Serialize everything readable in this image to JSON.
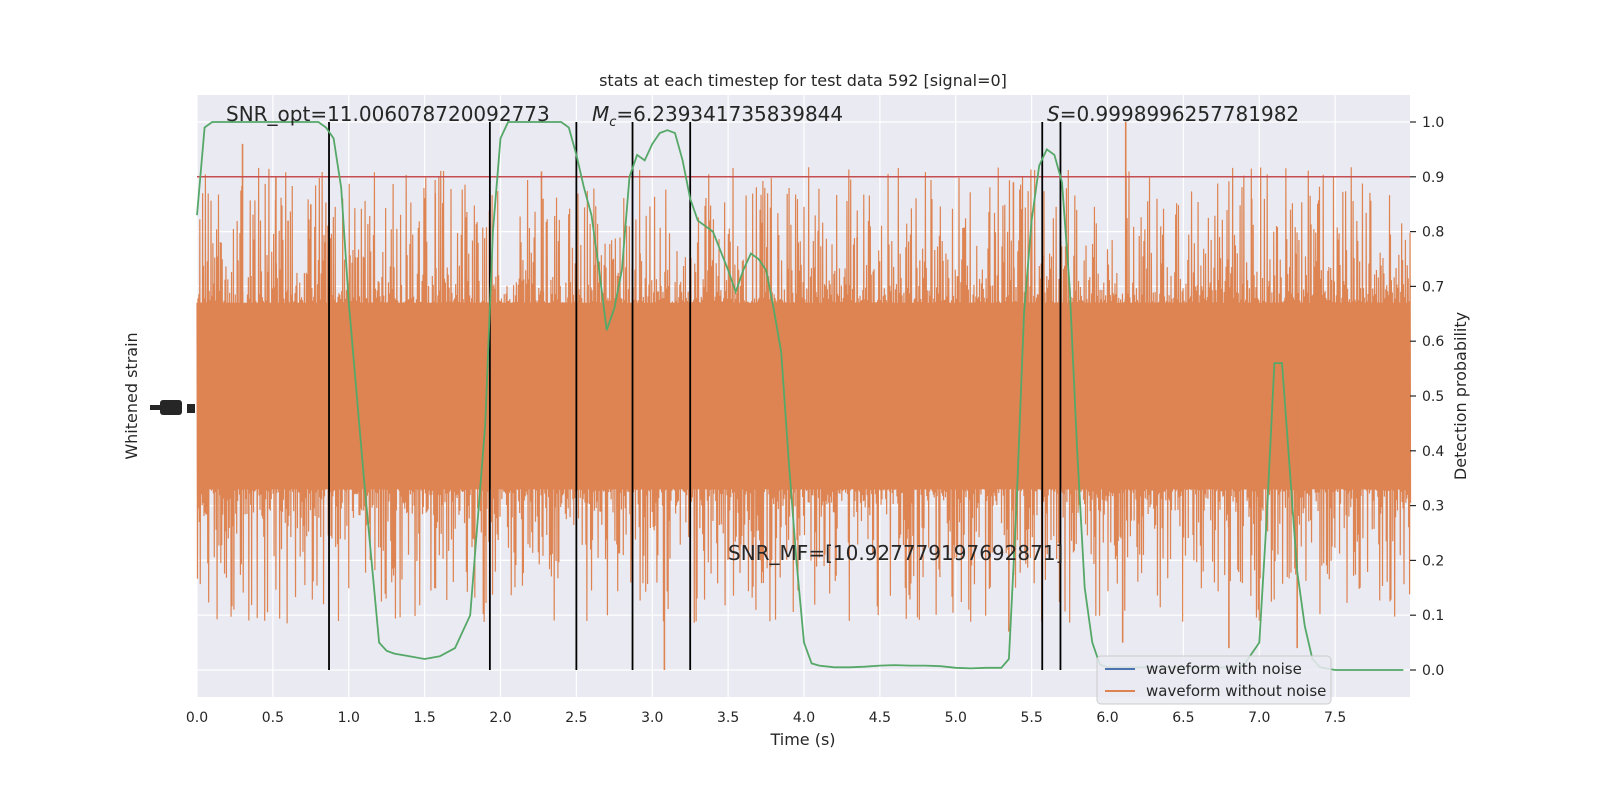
{
  "chart_data": {
    "type": "line",
    "title": "stats at each timestep for test data 592 [signal=0]",
    "xlabel": "Time (s)",
    "ylabel_left": "Whitened strain",
    "ylabel_right": "Detection probability",
    "xlim": [
      0.0,
      8.0
    ],
    "ylim_right": [
      -0.05,
      1.05
    ],
    "grid": true,
    "x_ticks": [
      0.0,
      0.5,
      1.0,
      1.5,
      2.0,
      2.5,
      3.0,
      3.5,
      4.0,
      4.5,
      5.0,
      5.5,
      6.0,
      6.5,
      7.0,
      7.5
    ],
    "x_tick_labels": [
      "0.0",
      "0.5",
      "1.0",
      "1.5",
      "2.0",
      "2.5",
      "3.0",
      "3.5",
      "4.0",
      "4.5",
      "5.0",
      "5.5",
      "6.0",
      "6.5",
      "7.0",
      "7.5"
    ],
    "y_ticks_right": [
      0.0,
      0.1,
      0.2,
      0.3,
      0.4,
      0.5,
      0.6,
      0.7,
      0.8,
      0.9,
      1.0
    ],
    "y_tick_labels_right": [
      "0.0",
      "0.1",
      "0.2",
      "0.3",
      "0.4",
      "0.5",
      "0.6",
      "0.7",
      "0.8",
      "0.9",
      "1.0"
    ],
    "annotations": {
      "snr_opt": "SNR_opt=11.006078720092773",
      "mc_symbol": "M",
      "mc_sub": "c",
      "mc_value": "=6.239341735839844",
      "s_symbol": "S",
      "s_value": "=0.9998996257781982",
      "snr_mf": "SNR_MF=[10.927779197692871]"
    },
    "threshold": 0.9,
    "vertical_lines_x": [
      0.87,
      1.93,
      2.5,
      2.87,
      3.25,
      5.57,
      5.69
    ],
    "legend": {
      "placement": "lower right",
      "entries": [
        {
          "label": "waveform with noise",
          "color": "#4c72b0"
        },
        {
          "label": "waveform without noise",
          "color": "#dd8452"
        }
      ]
    },
    "noise_band": {
      "center": 0.5,
      "halfwidth": 0.17,
      "max_spike": 0.5
    },
    "series": [
      {
        "name": "Detection probability",
        "color": "#55a868",
        "x": [
          0.0,
          0.05,
          0.1,
          0.2,
          0.3,
          0.4,
          0.5,
          0.6,
          0.7,
          0.8,
          0.85,
          0.9,
          0.95,
          1.0,
          1.1,
          1.2,
          1.25,
          1.3,
          1.4,
          1.5,
          1.6,
          1.7,
          1.8,
          1.9,
          1.95,
          2.0,
          2.05,
          2.1,
          2.2,
          2.3,
          2.4,
          2.45,
          2.5,
          2.55,
          2.6,
          2.65,
          2.7,
          2.75,
          2.8,
          2.85,
          2.9,
          2.95,
          3.0,
          3.05,
          3.1,
          3.15,
          3.2,
          3.25,
          3.3,
          3.4,
          3.5,
          3.55,
          3.6,
          3.65,
          3.7,
          3.75,
          3.8,
          3.85,
          3.9,
          3.95,
          4.0,
          4.05,
          4.1,
          4.2,
          4.3,
          4.4,
          4.5,
          4.6,
          4.7,
          4.8,
          4.9,
          5.0,
          5.1,
          5.2,
          5.3,
          5.35,
          5.4,
          5.45,
          5.5,
          5.55,
          5.6,
          5.65,
          5.7,
          5.75,
          5.8,
          5.85,
          5.9,
          5.95,
          6.0,
          6.05,
          6.1,
          6.2,
          6.3,
          6.4,
          6.5,
          6.6,
          6.7,
          6.8,
          6.9,
          7.0,
          7.05,
          7.1,
          7.15,
          7.2,
          7.25,
          7.3,
          7.35,
          7.4,
          7.5,
          7.6,
          7.7,
          7.8,
          7.9,
          7.95
        ],
        "y": [
          0.83,
          0.99,
          1.0,
          1.0,
          1.0,
          1.0,
          1.0,
          1.0,
          1.0,
          1.0,
          0.99,
          0.97,
          0.88,
          0.67,
          0.35,
          0.05,
          0.035,
          0.03,
          0.025,
          0.02,
          0.025,
          0.04,
          0.1,
          0.45,
          0.8,
          0.97,
          1.0,
          1.0,
          1.0,
          1.0,
          1.0,
          0.99,
          0.94,
          0.88,
          0.83,
          0.73,
          0.62,
          0.66,
          0.73,
          0.9,
          0.94,
          0.93,
          0.96,
          0.98,
          0.985,
          0.98,
          0.93,
          0.86,
          0.82,
          0.8,
          0.73,
          0.69,
          0.73,
          0.76,
          0.75,
          0.73,
          0.66,
          0.58,
          0.38,
          0.2,
          0.05,
          0.012,
          0.008,
          0.005,
          0.005,
          0.006,
          0.008,
          0.009,
          0.008,
          0.008,
          0.007,
          0.004,
          0.003,
          0.004,
          0.004,
          0.02,
          0.3,
          0.65,
          0.82,
          0.92,
          0.95,
          0.94,
          0.89,
          0.7,
          0.4,
          0.15,
          0.05,
          0.01,
          0.005,
          0.005,
          0.005,
          0.005,
          0.005,
          0.005,
          0.005,
          0.005,
          0.005,
          0.005,
          0.01,
          0.05,
          0.28,
          0.56,
          0.56,
          0.37,
          0.18,
          0.08,
          0.02,
          0.005,
          0.0,
          0.0,
          0.0,
          0.0,
          0.0,
          0.0
        ]
      },
      {
        "name": "waveform without noise",
        "color": "#dd8452",
        "x": [
          0.3,
          0.52,
          0.6,
          0.75,
          1.57,
          2.27,
          2.28,
          2.92,
          3.08,
          4.35,
          5.35,
          5.38,
          6.1,
          6.12,
          6.8,
          6.95,
          7.25
        ],
        "y": [
          0.96,
          0.9,
          0.82,
          0.85,
          0.87,
          0.91,
          0.86,
          0.76,
          0.0,
          0.79,
          0.07,
          0.89,
          0.05,
          1.0,
          0.04,
          0.86,
          0.04
        ]
      }
    ]
  }
}
